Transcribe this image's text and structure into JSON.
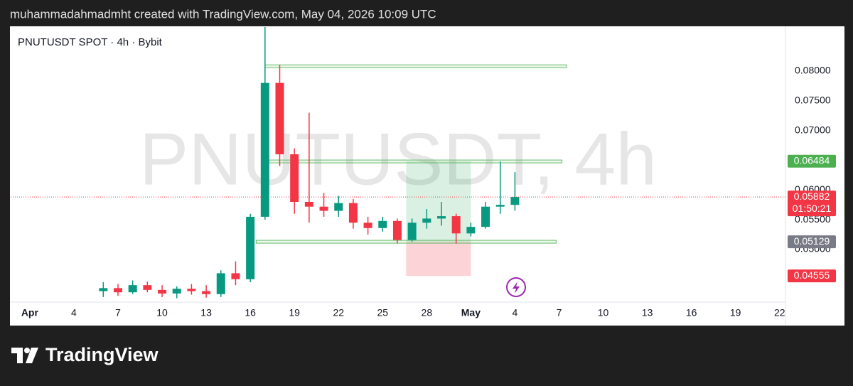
{
  "header": "muhammadahmadmht created with TradingView.com, May 04, 2026 10:09 UTC",
  "footer": "TradingView",
  "chart_data": {
    "type": "candlestick",
    "title": "PNUTUSDT SPOT · 4h · Bybit",
    "watermark": "PNUTUSDT, 4h",
    "up_color": "#089981",
    "down_color": "#f23645",
    "x": [
      5,
      6,
      7,
      8,
      9,
      10,
      11,
      12,
      13,
      14,
      15,
      16,
      17,
      18,
      19,
      20,
      21,
      22,
      23,
      24,
      25,
      26,
      27,
      28,
      29,
      30,
      31,
      32,
      33
    ],
    "open": [
      0.043,
      0.0435,
      0.0428,
      0.044,
      0.0432,
      0.0426,
      0.0434,
      0.043,
      0.0425,
      0.046,
      0.045,
      0.0555,
      0.078,
      0.066,
      0.058,
      0.0572,
      0.0565,
      0.0578,
      0.0545,
      0.0536,
      0.0548,
      0.0516,
      0.0545,
      0.0552,
      0.0556,
      0.0527,
      0.0538,
      0.0572,
      0.0575
    ],
    "high": [
      0.0445,
      0.0442,
      0.0448,
      0.0446,
      0.044,
      0.0438,
      0.0442,
      0.044,
      0.0465,
      0.048,
      0.056,
      0.0874,
      0.081,
      0.067,
      0.073,
      0.0595,
      0.059,
      0.0585,
      0.0555,
      0.0555,
      0.0552,
      0.0552,
      0.0568,
      0.058,
      0.056,
      0.0545,
      0.058,
      0.0648,
      0.063
    ],
    "low": [
      0.042,
      0.0422,
      0.0425,
      0.0428,
      0.042,
      0.0418,
      0.0424,
      0.0419,
      0.042,
      0.044,
      0.0445,
      0.055,
      0.064,
      0.056,
      0.0545,
      0.0555,
      0.0555,
      0.0535,
      0.0525,
      0.053,
      0.051,
      0.0513,
      0.0535,
      0.054,
      0.051,
      0.0522,
      0.0535,
      0.056,
      0.0565
    ],
    "close": [
      0.0435,
      0.0428,
      0.044,
      0.0432,
      0.0426,
      0.0434,
      0.043,
      0.0425,
      0.046,
      0.045,
      0.0555,
      0.078,
      0.066,
      0.058,
      0.0572,
      0.0565,
      0.0578,
      0.0545,
      0.0536,
      0.0548,
      0.0516,
      0.0545,
      0.0552,
      0.0556,
      0.0527,
      0.0538,
      0.0572,
      0.0575,
      0.05882
    ],
    "xlim": [
      -1.3,
      51.4
    ],
    "xticks": [
      {
        "value": 0,
        "label": "Apr"
      },
      {
        "value": 3,
        "label": "4"
      },
      {
        "value": 6,
        "label": "7"
      },
      {
        "value": 9,
        "label": "10"
      },
      {
        "value": 12,
        "label": "13"
      },
      {
        "value": 15,
        "label": "16"
      },
      {
        "value": 18,
        "label": "19"
      },
      {
        "value": 21,
        "label": "22"
      },
      {
        "value": 24,
        "label": "25"
      },
      {
        "value": 27,
        "label": "28"
      },
      {
        "value": 30,
        "label": "May"
      },
      {
        "value": 33,
        "label": "4"
      },
      {
        "value": 36,
        "label": "7"
      },
      {
        "value": 39,
        "label": "10"
      },
      {
        "value": 42,
        "label": "13"
      },
      {
        "value": 45,
        "label": "16"
      },
      {
        "value": 48,
        "label": "19"
      },
      {
        "value": 51,
        "label": "22"
      }
    ],
    "ylim": [
      0.04115,
      0.0874
    ],
    "yticks": [
      {
        "value": 0.08,
        "label": "0.08000"
      },
      {
        "value": 0.075,
        "label": "0.07500"
      },
      {
        "value": 0.07,
        "label": "0.07000"
      },
      {
        "value": 0.06,
        "label": "0.06000"
      },
      {
        "value": 0.055,
        "label": "0.05500"
      },
      {
        "value": 0.05,
        "label": "0.05000"
      }
    ],
    "levels": [
      {
        "price": 0.0808,
        "x": [
          16,
          36.5
        ]
      },
      {
        "price": 0.0648,
        "x": [
          15.8,
          36.2
        ]
      },
      {
        "price": 0.0513,
        "x": [
          15.4,
          35.8
        ]
      }
    ],
    "position": {
      "x": [
        25.6,
        30
      ],
      "target": 0.06484,
      "entry": 0.05129,
      "stop": 0.04555
    },
    "last_price": 0.05882,
    "countdown": "01:50:21"
  }
}
